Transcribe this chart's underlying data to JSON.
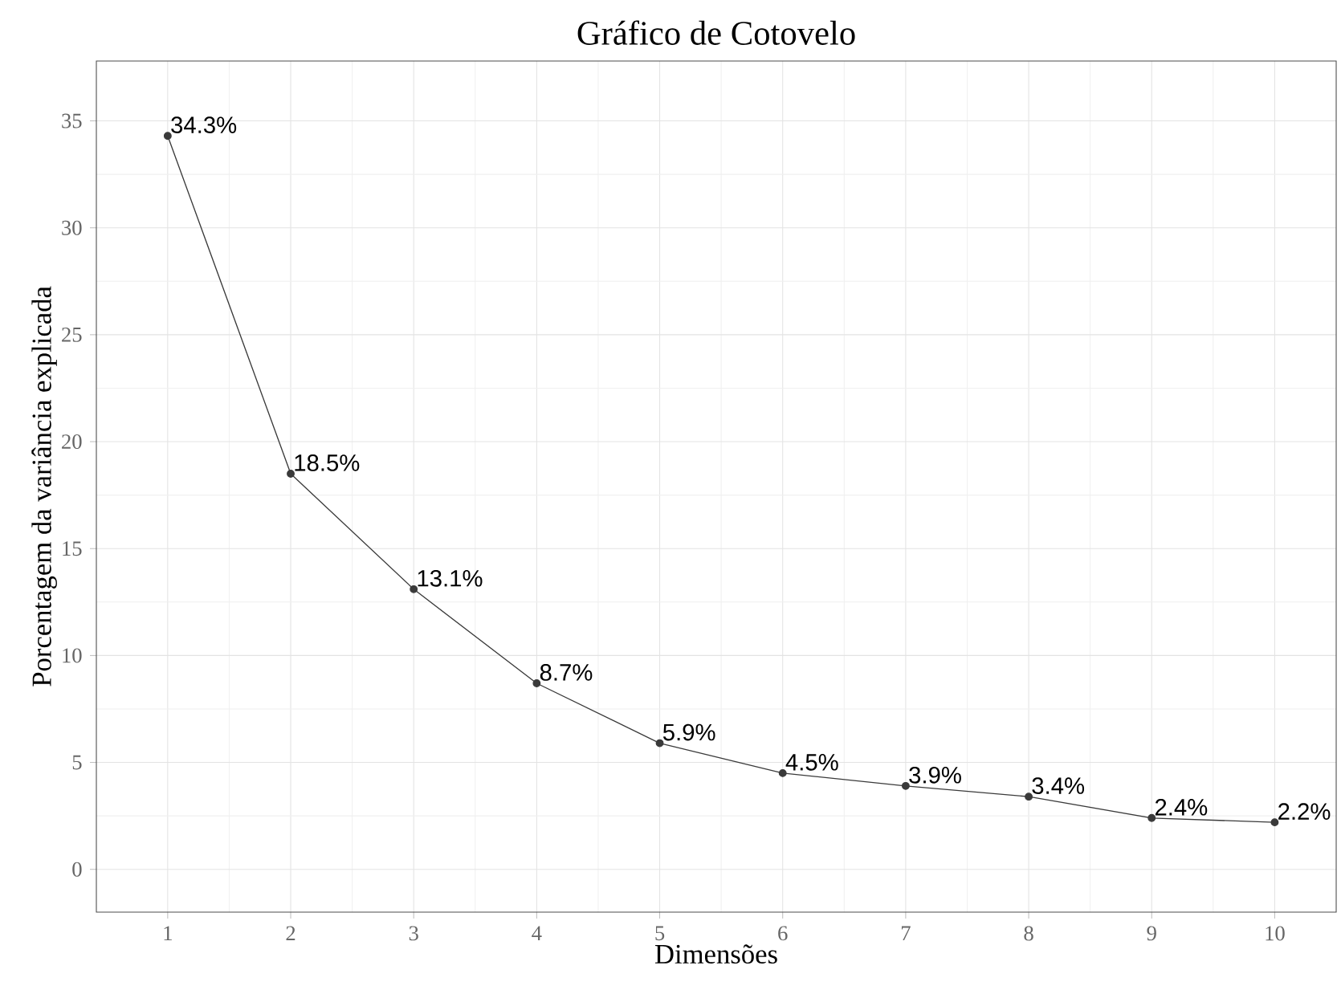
{
  "chart_data": {
    "type": "line",
    "title": "Gráfico de Cotovelo",
    "xlabel": "Dimensões",
    "ylabel": "Porcentagem da variância explicada",
    "x": [
      1,
      2,
      3,
      4,
      5,
      6,
      7,
      8,
      9,
      10
    ],
    "series": [
      {
        "color": "#3a3a3a",
        "values": [
          34.3,
          18.5,
          13.1,
          8.7,
          5.9,
          4.5,
          3.9,
          3.4,
          2.4,
          2.2
        ],
        "value_labels": [
          "34.3%",
          "18.5%",
          "13.1%",
          "8.7%",
          "5.9%",
          "4.5%",
          "3.9%",
          "3.4%",
          "2.4%",
          "2.2%"
        ]
      }
    ],
    "xlim": [
      0.42,
      10.5
    ],
    "ylim": [
      -2,
      37.8
    ],
    "xticks": [
      1,
      2,
      3,
      4,
      5,
      6,
      7,
      8,
      9,
      10
    ],
    "yticks": [
      0,
      5,
      10,
      15,
      20,
      25,
      30,
      35
    ],
    "grid": true,
    "marker": "circle",
    "line_style": "solid"
  }
}
